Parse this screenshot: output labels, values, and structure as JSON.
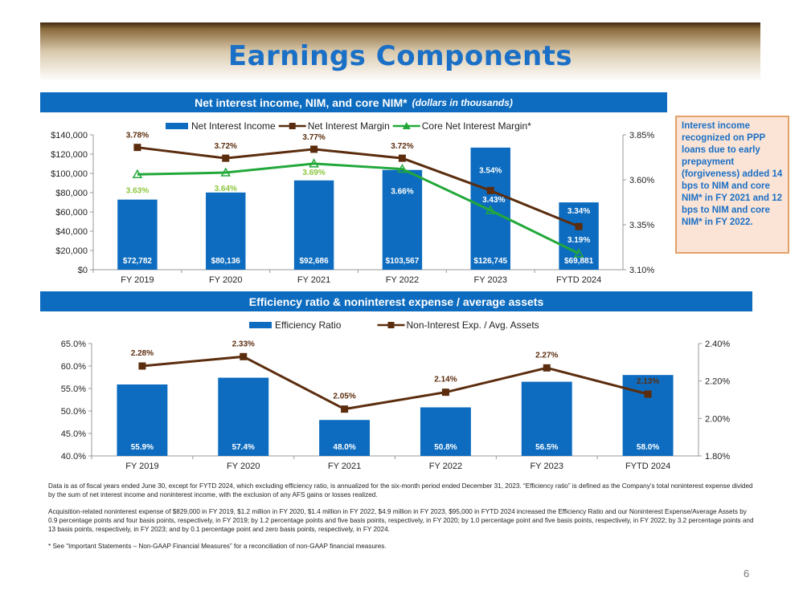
{
  "title": "Earnings Components",
  "section1": {
    "title": "Net interest income, NIM, and core NIM*",
    "subtitle": "(dollars in thousands)"
  },
  "section2": {
    "title": "Efficiency ratio & noninterest expense / average assets"
  },
  "callout": "Interest income recognized on PPP loans due to early prepayment (forgiveness) added 14 bps to NIM and core NIM* in FY 2021 and 12 bps to NIM and core NIM* in FY 2022.",
  "colors": {
    "bar": "#0d6cbf",
    "line_brown": "#5b2d0e",
    "line_green": "#22a83a",
    "green_label": "#8cc63f",
    "banner_title": "#1a6fc6"
  },
  "chart_data": [
    {
      "type": "bar",
      "categories": [
        "FY 2019",
        "FY 2020",
        "FY 2021",
        "FY 2022",
        "FY 2023",
        "FYTD 2024"
      ],
      "series": [
        {
          "name": "Net Interest Income",
          "type": "bar",
          "axis": "left",
          "values": [
            72782,
            80136,
            92686,
            103567,
            126745,
            69881
          ],
          "labels": [
            "$72,782",
            "$80,136",
            "$92,686",
            "$103,567",
            "$126,745",
            "$69,881"
          ]
        },
        {
          "name": "Net Interest Margin",
          "type": "line",
          "axis": "right",
          "values": [
            3.78,
            3.72,
            3.77,
            3.72,
            3.54,
            3.34
          ],
          "labels": [
            "3.78%",
            "3.72%",
            "3.77%",
            "3.72%",
            "3.54%",
            "3.34%"
          ]
        },
        {
          "name": "Core Net Interest Margin*",
          "type": "line",
          "axis": "right",
          "values": [
            3.63,
            3.64,
            3.69,
            3.66,
            3.43,
            3.19
          ],
          "labels": [
            "3.63%",
            "3.64%",
            "3.69%",
            "3.66%",
            "3.43%",
            "3.19%"
          ]
        }
      ],
      "ylim_left": [
        0,
        140000
      ],
      "yticks_left": [
        "$0",
        "$20,000",
        "$40,000",
        "$60,000",
        "$80,000",
        "$100,000",
        "$120,000",
        "$140,000"
      ],
      "ylim_right": [
        3.1,
        3.85
      ],
      "yticks_right": [
        "3.10%",
        "3.35%",
        "3.60%",
        "3.85%"
      ]
    },
    {
      "type": "bar",
      "categories": [
        "FY 2019",
        "FY 2020",
        "FY 2021",
        "FY 2022",
        "FY 2023",
        "FYTD 2024"
      ],
      "series": [
        {
          "name": "Efficiency Ratio",
          "type": "bar",
          "axis": "left",
          "values": [
            55.9,
            57.4,
            48.0,
            50.8,
            56.5,
            58.0
          ],
          "labels": [
            "55.9%",
            "57.4%",
            "48.0%",
            "50.8%",
            "56.5%",
            "58.0%"
          ]
        },
        {
          "name": "Non-Interest Exp. / Avg. Assets",
          "type": "line",
          "axis": "right",
          "values": [
            2.28,
            2.33,
            2.05,
            2.14,
            2.27,
            2.13
          ],
          "labels": [
            "2.28%",
            "2.33%",
            "2.05%",
            "2.14%",
            "2.27%",
            "2.13%"
          ]
        }
      ],
      "ylim_left": [
        40,
        65
      ],
      "yticks_left": [
        "40.0%",
        "45.0%",
        "50.0%",
        "55.0%",
        "60.0%",
        "65.0%"
      ],
      "ylim_right": [
        1.8,
        2.4
      ],
      "yticks_right": [
        "1.80%",
        "2.00%",
        "2.20%",
        "2.40%"
      ]
    }
  ],
  "notes": [
    "Data is as of fiscal years ended June 30, except for FYTD 2024, which excluding efficiency ratio, is annualized for the six-month period ended December 31, 2023. “Efficiency ratio” is defined as the Company’s total noninterest expense divided by the sum of net interest income and noninterest income, with the exclusion of any AFS gains or losses realized.",
    "Acquisition-related noninterest expense of $829,000 in FY 2019, $1.2 million in FY 2020, $1.4 million in FY 2022, $4.9 million in FY 2023, $95,000 in FYTD 2024 increased the Efficiency Ratio and our Noninterest Expense/Average Assets by 0.9 percentage points and four basis points, respectively, in FY 2019; by 1.2 percentage points and five basis points, respectively, in FY 2020; by 1.0 percentage point and five basis points, respectively, in FY 2022; by 3.2 percentage points and 13 basis points, respectively, in FY 2023; and by 0.1 percentage point and zero basis points, respectively, in FY 2024.",
    "* See “Important Statements – Non-GAAP Financial Measures” for a reconciliation of non-GAAP financial measures."
  ],
  "page_number": "6"
}
